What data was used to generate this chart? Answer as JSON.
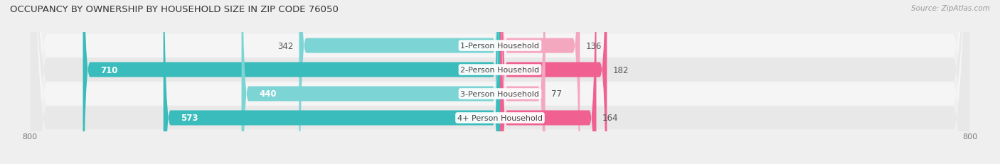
{
  "title": "OCCUPANCY BY OWNERSHIP BY HOUSEHOLD SIZE IN ZIP CODE 76050",
  "source": "Source: ZipAtlas.com",
  "categories": [
    "1-Person Household",
    "2-Person Household",
    "3-Person Household",
    "4+ Person Household"
  ],
  "owner_values": [
    342,
    710,
    440,
    573
  ],
  "renter_values": [
    136,
    182,
    77,
    164
  ],
  "owner_color_dark": "#3BBCBC",
  "owner_color_light": "#7DD4D4",
  "renter_color_dark": "#F06090",
  "renter_color_light": "#F4A8C0",
  "row_color_light": "#f5f5f5",
  "row_color_dark": "#e8e8e8",
  "axis_min": -800,
  "axis_max": 800,
  "bar_height": 0.62,
  "background_color": "#efefef",
  "label_color": "#555555",
  "title_color": "#333333",
  "dark_rows": [
    1,
    3
  ],
  "light_rows": [
    0,
    2
  ]
}
